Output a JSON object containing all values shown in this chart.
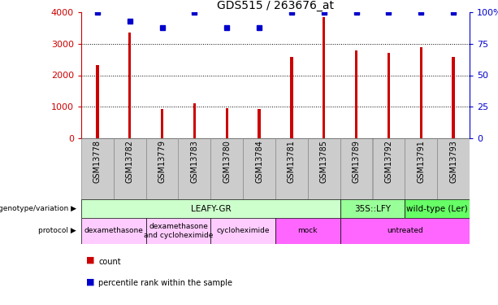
{
  "title": "GDS515 / 263676_at",
  "samples": [
    "GSM13778",
    "GSM13782",
    "GSM13779",
    "GSM13783",
    "GSM13780",
    "GSM13784",
    "GSM13781",
    "GSM13785",
    "GSM13789",
    "GSM13792",
    "GSM13791",
    "GSM13793"
  ],
  "counts": [
    2320,
    3360,
    940,
    1100,
    960,
    920,
    2580,
    3840,
    2800,
    2720,
    2900,
    2580
  ],
  "percentiles": [
    100,
    93,
    88,
    100,
    88,
    88,
    100,
    100,
    100,
    100,
    100,
    100
  ],
  "bar_color": "#cc0000",
  "dot_color": "#0000cc",
  "ylim_left": [
    0,
    4000
  ],
  "ylim_right": [
    0,
    100
  ],
  "yticks_left": [
    0,
    1000,
    2000,
    3000,
    4000
  ],
  "yticks_right": [
    0,
    25,
    50,
    75,
    100
  ],
  "genotype_groups": [
    {
      "label": "LEAFY-GR",
      "start": 0,
      "end": 8,
      "color": "#ccffcc"
    },
    {
      "label": "35S::LFY",
      "start": 8,
      "end": 10,
      "color": "#99ff99"
    },
    {
      "label": "wild-type (Ler)",
      "start": 10,
      "end": 12,
      "color": "#66ff66"
    }
  ],
  "protocol_groups": [
    {
      "label": "dexamethasone",
      "start": 0,
      "end": 2,
      "color": "#ffccff"
    },
    {
      "label": "dexamethasone\nand cycloheximide",
      "start": 2,
      "end": 4,
      "color": "#ffccff"
    },
    {
      "label": "cycloheximide",
      "start": 4,
      "end": 6,
      "color": "#ffccff"
    },
    {
      "label": "mock",
      "start": 6,
      "end": 8,
      "color": "#ff66ff"
    },
    {
      "label": "untreated",
      "start": 8,
      "end": 12,
      "color": "#ff66ff"
    }
  ],
  "legend_count_color": "#cc0000",
  "legend_pct_color": "#0000cc",
  "left_label_color": "#cc0000",
  "right_label_color": "#0000cc",
  "background_color": "#ffffff",
  "xtick_bg_color": "#cccccc",
  "xtick_border_color": "#888888"
}
